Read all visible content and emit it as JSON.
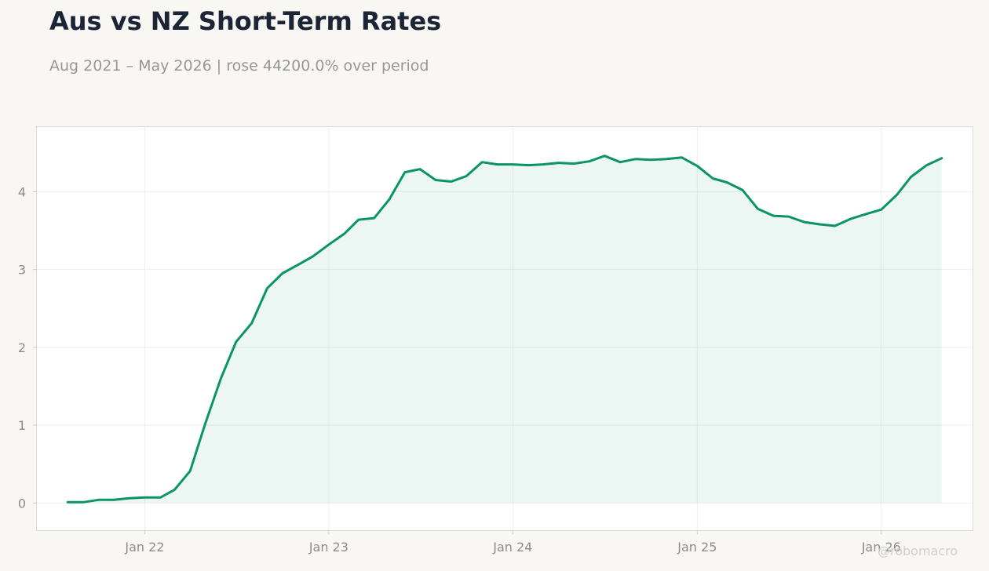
{
  "chart_data": {
    "type": "area",
    "title": "Aus vs NZ Short-Term Rates",
    "subtitle": "Aug 2021 – May 2026 | rose 44200.0% over period",
    "xlabel": "",
    "ylabel": "",
    "ylim": [
      -0.35,
      4.83
    ],
    "xlim": [
      "2021-06-01",
      "2026-07-01"
    ],
    "grid": true,
    "line_color": "#0a9467",
    "fill_color": "#0a9467",
    "x_ticks": [
      {
        "date": "2022-01-01",
        "label": "Jan 22"
      },
      {
        "date": "2023-01-01",
        "label": "Jan 23"
      },
      {
        "date": "2024-01-01",
        "label": "Jan 24"
      },
      {
        "date": "2025-01-01",
        "label": "Jan 25"
      },
      {
        "date": "2026-01-01",
        "label": "Jan 26"
      }
    ],
    "y_ticks": [
      {
        "value": 0,
        "label": "0"
      },
      {
        "value": 1,
        "label": "1"
      },
      {
        "value": 2,
        "label": "2"
      },
      {
        "value": 3,
        "label": "3"
      },
      {
        "value": 4,
        "label": "4"
      }
    ],
    "series": [
      {
        "x": [
          "2021-08",
          "2021-09",
          "2021-10",
          "2021-11",
          "2021-12",
          "2022-01",
          "2022-02",
          "2022-03",
          "2022-04",
          "2022-05",
          "2022-06",
          "2022-07",
          "2022-08",
          "2022-09",
          "2022-10",
          "2022-11",
          "2022-12",
          "2023-01",
          "2023-02",
          "2023-03",
          "2023-04",
          "2023-05",
          "2023-06",
          "2023-07",
          "2023-08",
          "2023-09",
          "2023-10",
          "2023-11",
          "2023-12",
          "2024-01",
          "2024-02",
          "2024-03",
          "2024-04",
          "2024-05",
          "2024-06",
          "2024-07",
          "2024-08",
          "2024-09",
          "2024-10",
          "2024-11",
          "2024-12",
          "2025-01",
          "2025-02",
          "2025-03",
          "2025-04",
          "2025-05",
          "2025-06",
          "2025-07",
          "2025-08",
          "2025-09",
          "2025-10",
          "2025-11",
          "2025-12",
          "2026-01",
          "2026-02",
          "2026-03",
          "2026-04",
          "2026-05"
        ],
        "values": [
          0.01,
          0.01,
          0.04,
          0.04,
          0.06,
          0.07,
          0.07,
          0.17,
          0.41,
          1.02,
          1.6,
          2.07,
          2.31,
          2.76,
          2.95,
          3.06,
          3.17,
          3.32,
          3.46,
          3.64,
          3.66,
          3.9,
          4.25,
          4.29,
          4.15,
          4.13,
          4.2,
          4.38,
          4.35,
          4.35,
          4.34,
          4.35,
          4.37,
          4.36,
          4.39,
          4.46,
          4.38,
          4.42,
          4.41,
          4.42,
          4.44,
          4.33,
          4.17,
          4.12,
          4.02,
          3.78,
          3.69,
          3.68,
          3.61,
          3.58,
          3.56,
          3.65,
          3.71,
          3.77,
          3.96,
          4.19,
          4.34,
          4.43
        ]
      }
    ],
    "watermark": "@robomacro"
  }
}
